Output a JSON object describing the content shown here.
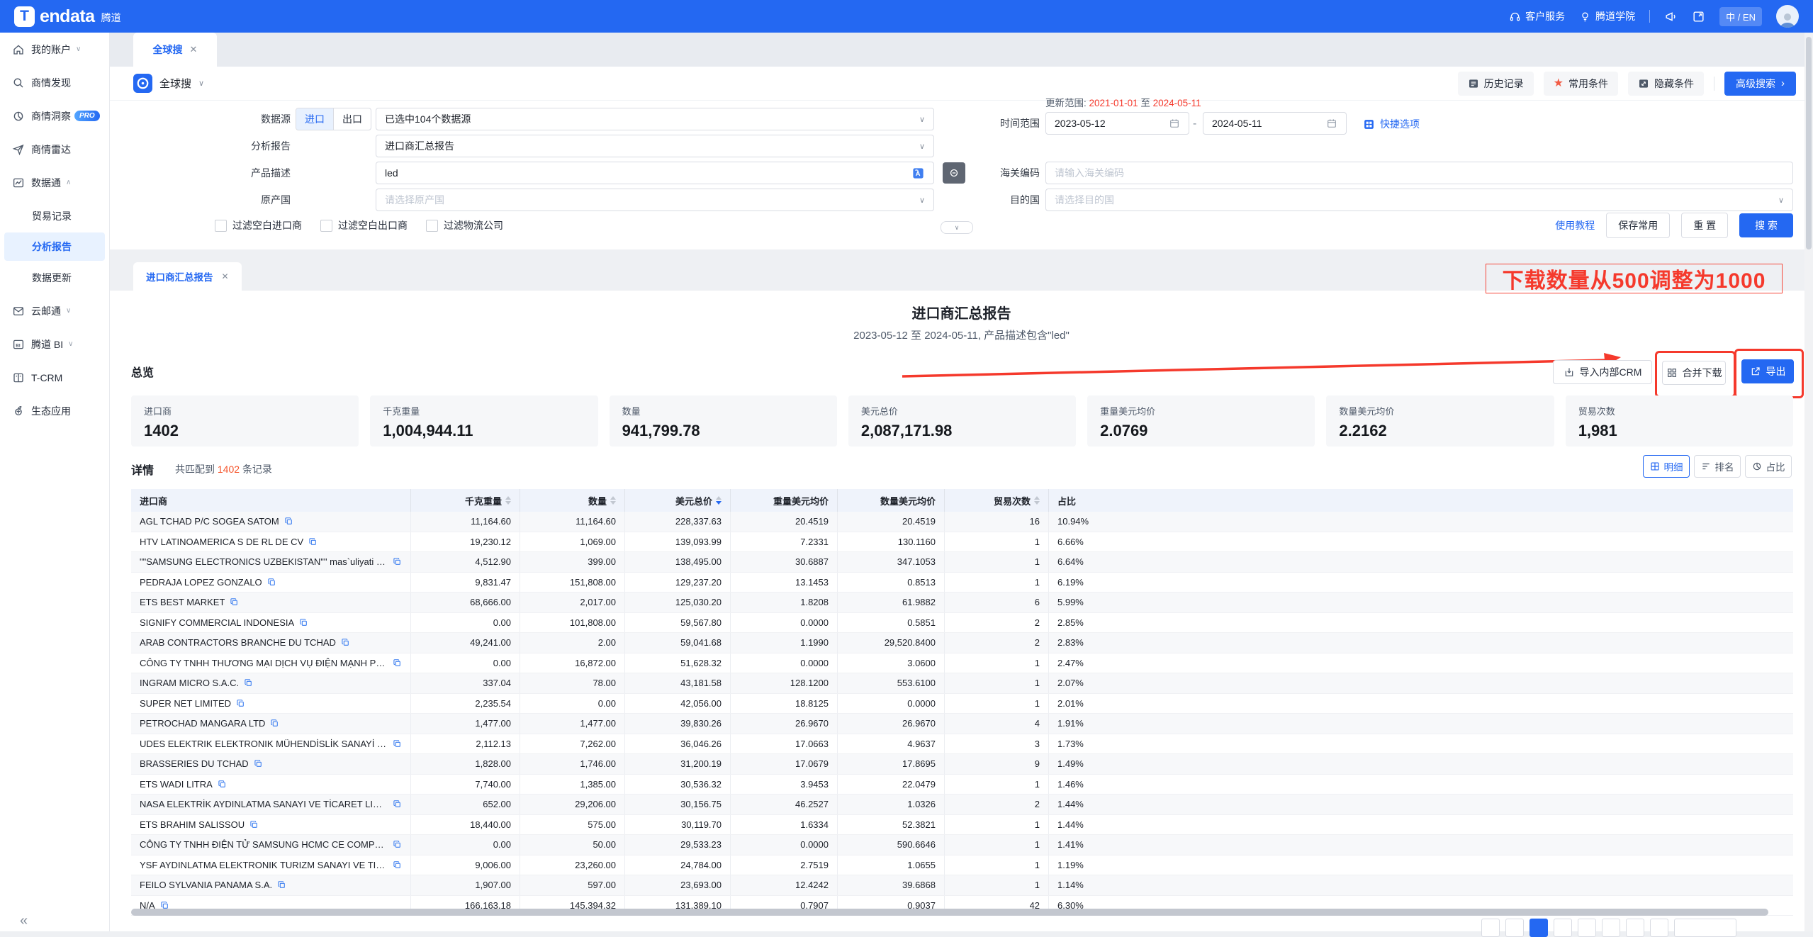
{
  "topbar": {
    "logo_t": "T",
    "logo_en": "endata",
    "logo_cn": "腾道",
    "service": "客户服务",
    "academy": "腾道学院",
    "lang": "中 / EN"
  },
  "sidebar": {
    "items": [
      {
        "icon": "home",
        "label": "我的账户",
        "chevron": "down"
      },
      {
        "icon": "search",
        "label": "商情发现"
      },
      {
        "icon": "insight",
        "label": "商情洞察",
        "badge": "PRO"
      },
      {
        "icon": "radar",
        "label": "商情雷达"
      },
      {
        "icon": "data",
        "label": "数据通",
        "chevron": "up"
      },
      {
        "label": "贸易记录",
        "sub": true
      },
      {
        "label": "分析报告",
        "sub": true,
        "active": true
      },
      {
        "label": "数据更新",
        "sub": true
      },
      {
        "icon": "mail",
        "label": "云邮通",
        "chevron": "down"
      },
      {
        "icon": "bi",
        "label": "腾道 BI",
        "chevron": "down"
      },
      {
        "icon": "tcrm",
        "label": "T-CRM"
      },
      {
        "icon": "eco",
        "label": "生态应用"
      }
    ],
    "collapse": "«"
  },
  "workspace_tab": "全球搜",
  "search": {
    "scope": "全球搜",
    "top_actions": {
      "history": "历史记录",
      "favorite": "常用条件",
      "hide": "隐藏条件",
      "advanced": "高级搜索"
    },
    "fields": {
      "datasource_label": "数据源",
      "import_toggle": "进口",
      "export_toggle": "出口",
      "datasource_value": "已选中104个数据源",
      "report_label": "分析报告",
      "report_value": "进口商汇总报告",
      "product_label": "产品描述",
      "product_value": "led",
      "origin_label": "原产国",
      "origin_placeholder": "请选择原产国",
      "update_label": "更新范围:",
      "update_from": "2021-01-01",
      "update_mid": "至",
      "update_to": "2024-05-11",
      "time_label": "时间范围",
      "date_from": "2023-05-12",
      "date_sep": "-",
      "date_to": "2024-05-11",
      "quick": "快捷选项",
      "hscode_label": "海关编码",
      "hscode_placeholder": "请输入海关编码",
      "dest_label": "目的国",
      "dest_placeholder": "请选择目的国"
    },
    "checkboxes": [
      "过滤空白进口商",
      "过滤空白出口商",
      "过滤物流公司"
    ],
    "actions": {
      "tutorial": "使用教程",
      "save": "保存常用",
      "reset": "重 置",
      "search": "搜 索"
    }
  },
  "report": {
    "tab": "进口商汇总报告",
    "annotation": "下载数量从500调整为1000",
    "title": "进口商汇总报告",
    "subtitle": "2023-05-12 至 2024-05-11, 产品描述包含\"led\"",
    "overview_label": "总览",
    "buttons": {
      "crm": "导入内部CRM",
      "merge": "合并下载",
      "export": "导出"
    },
    "stats": [
      {
        "label": "进口商",
        "value": "1402"
      },
      {
        "label": "千克重量",
        "value": "1,004,944.11"
      },
      {
        "label": "数量",
        "value": "941,799.78"
      },
      {
        "label": "美元总价",
        "value": "2,087,171.98"
      },
      {
        "label": "重量美元均价",
        "value": "2.0769"
      },
      {
        "label": "数量美元均价",
        "value": "2.2162"
      },
      {
        "label": "贸易次数",
        "value": "1,981"
      }
    ],
    "detail": {
      "label": "详情",
      "match_prefix": "共匹配到",
      "match_count": "1402",
      "match_suffix": "条记录",
      "views": [
        "明细",
        "排名",
        "占比"
      ],
      "active_view": 0
    },
    "table": {
      "headers": [
        "进口商",
        "千克重量",
        "数量",
        "美元总价",
        "重量美元均价",
        "数量美元均价",
        "贸易次数",
        "占比"
      ],
      "sorted_desc_column": 3,
      "sortable_columns": [
        1,
        2,
        3,
        6
      ],
      "rows": [
        [
          "AGL TCHAD P/C SOGEA SATOM",
          "11,164.60",
          "11,164.60",
          "228,337.63",
          "20.4519",
          "20.4519",
          "16",
          "10.94%"
        ],
        [
          "HTV LATINOAMERICA S DE RL DE CV",
          "19,230.12",
          "1,069.00",
          "139,093.99",
          "7.2331",
          "130.1160",
          "1",
          "6.66%"
        ],
        [
          "\"\"SAMSUNG ELECTRONICS UZBEKISTAN\"\" mas`uliyati chekla...",
          "4,512.90",
          "399.00",
          "138,495.00",
          "30.6887",
          "347.1053",
          "1",
          "6.64%"
        ],
        [
          "PEDRAJA LOPEZ GONZALO",
          "9,831.47",
          "151,808.00",
          "129,237.20",
          "13.1453",
          "0.8513",
          "1",
          "6.19%"
        ],
        [
          "ETS BEST MARKET",
          "68,666.00",
          "2,017.00",
          "125,030.20",
          "1.8208",
          "61.9882",
          "6",
          "5.99%"
        ],
        [
          "SIGNIFY COMMERCIAL INDONESIA",
          "0.00",
          "101,808.00",
          "59,567.80",
          "0.0000",
          "0.5851",
          "2",
          "2.85%"
        ],
        [
          "ARAB CONTRACTORS BRANCHE DU TCHAD",
          "49,241.00",
          "2.00",
          "59,041.68",
          "1.1990",
          "29,520.8400",
          "2",
          "2.83%"
        ],
        [
          "CÔNG TY TNHH THƯƠNG MẠI DỊCH VỤ ĐIỆN MẠNH PHƯƠNG",
          "0.00",
          "16,872.00",
          "51,628.32",
          "0.0000",
          "3.0600",
          "1",
          "2.47%"
        ],
        [
          "INGRAM MICRO S.A.C.",
          "337.04",
          "78.00",
          "43,181.58",
          "128.1200",
          "553.6100",
          "1",
          "2.07%"
        ],
        [
          "SUPER NET LIMITED",
          "2,235.54",
          "0.00",
          "42,056.00",
          "18.8125",
          "0.0000",
          "1",
          "2.01%"
        ],
        [
          "PETROCHAD MANGARA LTD",
          "1,477.00",
          "1,477.00",
          "39,830.26",
          "26.9670",
          "26.9670",
          "4",
          "1.91%"
        ],
        [
          "UDES ELEKTRIK ELEKTRONIK MÜHENDİSLİK SANAYİ VE TİCA...",
          "2,112.13",
          "7,262.00",
          "36,046.26",
          "17.0663",
          "4.9637",
          "3",
          "1.73%"
        ],
        [
          "BRASSERIES DU TCHAD",
          "1,828.00",
          "1,746.00",
          "31,200.19",
          "17.0679",
          "17.8695",
          "9",
          "1.49%"
        ],
        [
          "ETS WADI LITRA",
          "7,740.00",
          "1,385.00",
          "30,536.32",
          "3.9453",
          "22.0479",
          "1",
          "1.46%"
        ],
        [
          "NASA ELEKTRİK AYDINLATMA SANAYI VE TİCARET LIMITED Ş...",
          "652.00",
          "29,206.00",
          "30,156.75",
          "46.2527",
          "1.0326",
          "2",
          "1.44%"
        ],
        [
          "ETS BRAHIM SALISSOU",
          "18,440.00",
          "575.00",
          "30,119.70",
          "1.6334",
          "52.3821",
          "1",
          "1.44%"
        ],
        [
          "CÔNG TY TNHH ĐIỆN TỬ SAMSUNG HCMC CE COMPLEX CH...",
          "0.00",
          "50.00",
          "29,533.23",
          "0.0000",
          "590.6646",
          "1",
          "1.41%"
        ],
        [
          "YSF AYDINLATMA ELEKTRONIK TURIZM SANAYI VE TICARET ...",
          "9,006.00",
          "23,260.00",
          "24,784.00",
          "2.7519",
          "1.0655",
          "1",
          "1.19%"
        ],
        [
          "FEILO SYLVANIA PANAMA S.A.",
          "1,907.00",
          "597.00",
          "23,693.00",
          "12.4242",
          "39.6868",
          "1",
          "1.14%"
        ],
        [
          "N/A",
          "166,163.18",
          "145,394.32",
          "131,389.10",
          "0.7907",
          "0.9037",
          "42",
          "6.30%"
        ]
      ]
    },
    "pagination": {
      "box_count": 8,
      "active_index": 2,
      "has_wide_box": true
    }
  },
  "colors": {
    "primary": "#2468f2",
    "alert_red": "#f5392c",
    "star_orange": "#f25b45"
  }
}
